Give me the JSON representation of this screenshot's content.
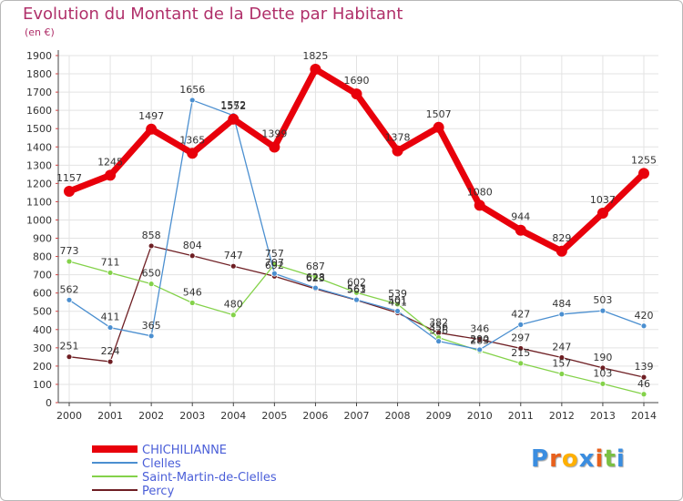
{
  "header": {
    "title": "Evolution du Montant de la Dette par Habitant",
    "unit": "(en €)"
  },
  "logo": {
    "letters": [
      "P",
      "r",
      "o",
      "x",
      "i",
      "t",
      "i"
    ],
    "colors": [
      "#3a8de0",
      "#e8601c",
      "#ffb000",
      "#3a8de0",
      "#e8601c",
      "#7ac043",
      "#3a8de0"
    ]
  },
  "chart_data": {
    "type": "line",
    "title": "Evolution du Montant de la Dette par Habitant",
    "ylabel": "(en €)",
    "xlabel": "",
    "x": [
      "2000",
      "2001",
      "2002",
      "2003",
      "2004",
      "2005",
      "2006",
      "2007",
      "2008",
      "2009",
      "2010",
      "2011",
      "2012",
      "2013",
      "2014"
    ],
    "ylim": [
      0,
      1900
    ],
    "yticks": [
      0,
      100,
      200,
      300,
      400,
      500,
      600,
      700,
      800,
      900,
      1000,
      1100,
      1200,
      1300,
      1400,
      1500,
      1600,
      1700,
      1800,
      1900
    ],
    "grid": true,
    "legend_position": "bottom-left",
    "series": [
      {
        "name": "CHICHILIANNE",
        "color": "#e8000b",
        "values": [
          1157,
          1245,
          1497,
          1365,
          1552,
          1399,
          1825,
          1690,
          1378,
          1507,
          1080,
          944,
          829,
          1037,
          1255
        ]
      },
      {
        "name": "Clelles",
        "color": "#4b8fd0",
        "values": [
          562,
          411,
          365,
          1656,
          1572,
          707,
          628,
          563,
          501,
          336,
          290,
          427,
          484,
          503,
          420
        ]
      },
      {
        "name": "Saint-Martin-de-Clelles",
        "color": "#84d24a",
        "values": [
          773,
          711,
          650,
          546,
          480,
          757,
          687,
          602,
          539,
          356,
          283,
          215,
          157,
          103,
          46
        ]
      },
      {
        "name": "Percy",
        "color": "#6e1e23",
        "values": [
          251,
          224,
          858,
          804,
          747,
          692,
          623,
          561,
          491,
          382,
          346,
          297,
          247,
          190,
          139
        ]
      }
    ]
  }
}
